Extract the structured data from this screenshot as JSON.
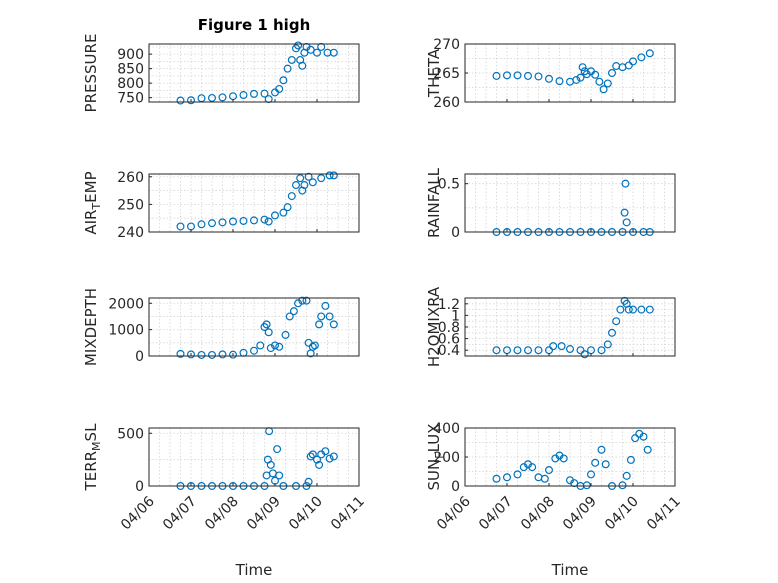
{
  "figure": {
    "title": "Figure 1 high",
    "xlabel": "Time",
    "xticks": [
      "04/06",
      "04/07",
      "04/08",
      "04/09",
      "04/10",
      "04/11"
    ],
    "marker_color": "#0072BD"
  },
  "chart_data": [
    {
      "type": "scatter",
      "id": "pressure",
      "ylabel": "PRESSURE",
      "ylim": [
        735,
        935
      ],
      "yticks": [
        750,
        800,
        850,
        900
      ],
      "grid": true,
      "marker": "open-circle",
      "points": [
        [
          6.75,
          740
        ],
        [
          7.0,
          741
        ],
        [
          7.25,
          748
        ],
        [
          7.5,
          749
        ],
        [
          7.75,
          751
        ],
        [
          8.0,
          755
        ],
        [
          8.25,
          759
        ],
        [
          8.5,
          763
        ],
        [
          8.75,
          764
        ],
        [
          8.85,
          745
        ],
        [
          9.0,
          768
        ],
        [
          9.1,
          780
        ],
        [
          9.2,
          810
        ],
        [
          9.3,
          850
        ],
        [
          9.4,
          880
        ],
        [
          9.5,
          920
        ],
        [
          9.55,
          930
        ],
        [
          9.6,
          880
        ],
        [
          9.65,
          860
        ],
        [
          9.7,
          905
        ],
        [
          9.75,
          925
        ],
        [
          9.85,
          915
        ],
        [
          10.0,
          905
        ],
        [
          10.1,
          925
        ],
        [
          10.25,
          905
        ],
        [
          10.4,
          905
        ]
      ]
    },
    {
      "type": "scatter",
      "id": "theta",
      "ylabel": "THETA",
      "ylim": [
        260,
        270
      ],
      "yticks": [
        260,
        265,
        270
      ],
      "grid": true,
      "marker": "open-circle",
      "points": [
        [
          6.75,
          264.5
        ],
        [
          7.0,
          264.6
        ],
        [
          7.25,
          264.6
        ],
        [
          7.5,
          264.5
        ],
        [
          7.75,
          264.4
        ],
        [
          8.0,
          264.0
        ],
        [
          8.25,
          263.6
        ],
        [
          8.5,
          263.5
        ],
        [
          8.65,
          263.8
        ],
        [
          8.75,
          264.2
        ],
        [
          8.8,
          266.0
        ],
        [
          8.85,
          265.3
        ],
        [
          8.9,
          264.8
        ],
        [
          9.0,
          265.3
        ],
        [
          9.1,
          264.7
        ],
        [
          9.2,
          263.5
        ],
        [
          9.3,
          262.2
        ],
        [
          9.4,
          263.2
        ],
        [
          9.5,
          265.0
        ],
        [
          9.6,
          266.2
        ],
        [
          9.75,
          266.0
        ],
        [
          9.9,
          266.3
        ],
        [
          10.0,
          267.0
        ],
        [
          10.2,
          267.7
        ],
        [
          10.4,
          268.4
        ]
      ]
    },
    {
      "type": "scatter",
      "id": "air_temp",
      "ylabel": "AIR_TEMP",
      "ylim": [
        240,
        261
      ],
      "yticks": [
        240,
        250,
        260
      ],
      "grid": true,
      "marker": "open-circle",
      "points": [
        [
          6.75,
          242
        ],
        [
          7.0,
          242
        ],
        [
          7.25,
          242.8
        ],
        [
          7.5,
          243.2
        ],
        [
          7.75,
          243.5
        ],
        [
          8.0,
          243.8
        ],
        [
          8.25,
          244.0
        ],
        [
          8.5,
          244.2
        ],
        [
          8.75,
          244.5
        ],
        [
          8.85,
          243.8
        ],
        [
          9.0,
          246
        ],
        [
          9.2,
          247
        ],
        [
          9.3,
          249
        ],
        [
          9.4,
          253
        ],
        [
          9.5,
          257
        ],
        [
          9.6,
          259.5
        ],
        [
          9.65,
          255
        ],
        [
          9.7,
          257
        ],
        [
          9.8,
          260
        ],
        [
          9.9,
          258
        ],
        [
          10.1,
          259.5
        ],
        [
          10.3,
          260.5
        ],
        [
          10.4,
          260.5
        ]
      ]
    },
    {
      "type": "scatter",
      "id": "rainfall",
      "ylabel": "RAINFALL",
      "ylim": [
        0,
        0.6
      ],
      "yticks": [
        0,
        0.5
      ],
      "grid": true,
      "marker": "open-circle",
      "points": [
        [
          6.75,
          0
        ],
        [
          7.0,
          0
        ],
        [
          7.25,
          0
        ],
        [
          7.5,
          0
        ],
        [
          7.75,
          0
        ],
        [
          8.0,
          0
        ],
        [
          8.25,
          0
        ],
        [
          8.5,
          0
        ],
        [
          8.75,
          0
        ],
        [
          9.0,
          0
        ],
        [
          9.25,
          0
        ],
        [
          9.5,
          0
        ],
        [
          9.75,
          0
        ],
        [
          9.8,
          0.2
        ],
        [
          9.82,
          0.5
        ],
        [
          9.85,
          0.1
        ],
        [
          10.0,
          0
        ],
        [
          10.25,
          0
        ],
        [
          10.4,
          0
        ]
      ]
    },
    {
      "type": "scatter",
      "id": "mixdepth",
      "ylabel": "MIXDEPTH",
      "ylim": [
        0,
        2200
      ],
      "yticks": [
        0,
        1000,
        2000
      ],
      "grid": true,
      "marker": "open-circle",
      "points": [
        [
          6.75,
          80
        ],
        [
          7.0,
          60
        ],
        [
          7.25,
          40
        ],
        [
          7.5,
          40
        ],
        [
          7.75,
          60
        ],
        [
          8.0,
          50
        ],
        [
          8.25,
          120
        ],
        [
          8.5,
          200
        ],
        [
          8.65,
          400
        ],
        [
          8.75,
          1100
        ],
        [
          8.8,
          1200
        ],
        [
          8.85,
          900
        ],
        [
          8.9,
          300
        ],
        [
          9.0,
          400
        ],
        [
          9.1,
          350
        ],
        [
          9.25,
          800
        ],
        [
          9.35,
          1500
        ],
        [
          9.45,
          1700
        ],
        [
          9.55,
          2000
        ],
        [
          9.65,
          2100
        ],
        [
          9.75,
          2100
        ],
        [
          9.8,
          500
        ],
        [
          9.85,
          100
        ],
        [
          9.9,
          350
        ],
        [
          9.95,
          400
        ],
        [
          10.05,
          1200
        ],
        [
          10.1,
          1500
        ],
        [
          10.2,
          1900
        ],
        [
          10.3,
          1500
        ],
        [
          10.4,
          1200
        ]
      ]
    },
    {
      "type": "scatter",
      "id": "h2omixra",
      "ylabel": "H2OMIXRA",
      "ylim": [
        0.3,
        1.3
      ],
      "yticks": [
        0.4,
        0.6,
        0.8,
        1,
        1.2
      ],
      "grid": true,
      "marker": "open-circle",
      "points": [
        [
          6.75,
          0.4
        ],
        [
          7.0,
          0.4
        ],
        [
          7.25,
          0.4
        ],
        [
          7.5,
          0.4
        ],
        [
          7.75,
          0.4
        ],
        [
          8.0,
          0.4
        ],
        [
          8.1,
          0.47
        ],
        [
          8.3,
          0.47
        ],
        [
          8.5,
          0.42
        ],
        [
          8.75,
          0.4
        ],
        [
          8.85,
          0.33
        ],
        [
          9.0,
          0.4
        ],
        [
          9.25,
          0.4
        ],
        [
          9.4,
          0.5
        ],
        [
          9.5,
          0.7
        ],
        [
          9.6,
          0.9
        ],
        [
          9.7,
          1.1
        ],
        [
          9.8,
          1.25
        ],
        [
          9.85,
          1.2
        ],
        [
          9.9,
          1.1
        ],
        [
          10.0,
          1.1
        ],
        [
          10.2,
          1.1
        ],
        [
          10.4,
          1.1
        ]
      ]
    },
    {
      "type": "scatter",
      "id": "terr_msl",
      "ylabel": "TERR_MSL",
      "ylim": [
        0,
        550
      ],
      "yticks": [
        0,
        500
      ],
      "grid": true,
      "marker": "open-circle",
      "points": [
        [
          6.75,
          0
        ],
        [
          7.0,
          0
        ],
        [
          7.25,
          0
        ],
        [
          7.5,
          0
        ],
        [
          7.75,
          0
        ],
        [
          8.0,
          0
        ],
        [
          8.25,
          0
        ],
        [
          8.5,
          0
        ],
        [
          8.75,
          0
        ],
        [
          8.8,
          100
        ],
        [
          8.83,
          250
        ],
        [
          8.86,
          520
        ],
        [
          8.9,
          200
        ],
        [
          8.95,
          120
        ],
        [
          9.0,
          50
        ],
        [
          9.05,
          350
        ],
        [
          9.1,
          100
        ],
        [
          9.2,
          0
        ],
        [
          9.5,
          0
        ],
        [
          9.75,
          0
        ],
        [
          9.8,
          40
        ],
        [
          9.85,
          280
        ],
        [
          9.9,
          300
        ],
        [
          10.0,
          250
        ],
        [
          10.05,
          200
        ],
        [
          10.1,
          300
        ],
        [
          10.2,
          330
        ],
        [
          10.3,
          260
        ],
        [
          10.4,
          280
        ]
      ]
    },
    {
      "type": "scatter",
      "id": "sun_flux",
      "ylabel": "SUN_FLUX",
      "ylim": [
        0,
        400
      ],
      "yticks": [
        0,
        200,
        400
      ],
      "grid": true,
      "marker": "open-circle",
      "points": [
        [
          6.75,
          50
        ],
        [
          7.0,
          60
        ],
        [
          7.25,
          80
        ],
        [
          7.4,
          130
        ],
        [
          7.5,
          150
        ],
        [
          7.6,
          130
        ],
        [
          7.75,
          60
        ],
        [
          7.9,
          50
        ],
        [
          8.0,
          110
        ],
        [
          8.15,
          190
        ],
        [
          8.25,
          210
        ],
        [
          8.35,
          190
        ],
        [
          8.5,
          40
        ],
        [
          8.6,
          20
        ],
        [
          8.75,
          0
        ],
        [
          8.9,
          5
        ],
        [
          9.0,
          80
        ],
        [
          9.1,
          160
        ],
        [
          9.25,
          250
        ],
        [
          9.35,
          150
        ],
        [
          9.5,
          0
        ],
        [
          9.75,
          5
        ],
        [
          9.85,
          70
        ],
        [
          9.95,
          180
        ],
        [
          10.05,
          330
        ],
        [
          10.15,
          360
        ],
        [
          10.25,
          340
        ],
        [
          10.35,
          250
        ]
      ]
    }
  ]
}
